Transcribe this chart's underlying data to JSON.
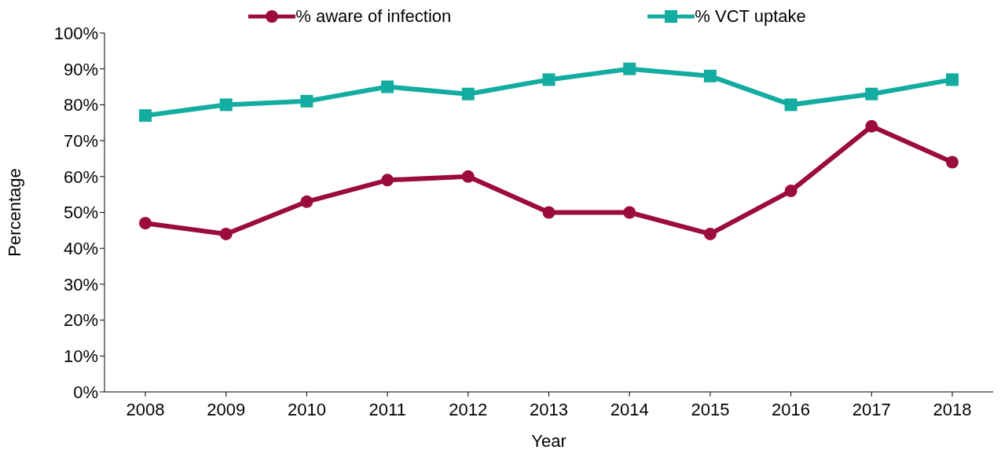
{
  "chart_data": {
    "type": "line",
    "xlabel": "Year",
    "ylabel": "Percentage",
    "categories": [
      "2008",
      "2009",
      "2010",
      "2011",
      "2012",
      "2013",
      "2014",
      "2015",
      "2016",
      "2017",
      "2018"
    ],
    "series": [
      {
        "name": "% aware of infection",
        "color": "#9b0b3e",
        "marker": "circle",
        "values": [
          47,
          44,
          53,
          59,
          60,
          50,
          50,
          44,
          56,
          74,
          64
        ]
      },
      {
        "name": "% VCT uptake",
        "color": "#13aca0",
        "marker": "square",
        "values": [
          77,
          80,
          81,
          85,
          83,
          87,
          90,
          88,
          80,
          83,
          87
        ]
      }
    ],
    "ylim": [
      0,
      100
    ],
    "yticks": [
      {
        "value": 0,
        "label": "0%"
      },
      {
        "value": 10,
        "label": "10%"
      },
      {
        "value": 20,
        "label": "20%"
      },
      {
        "value": 30,
        "label": "30%"
      },
      {
        "value": 40,
        "label": "40%"
      },
      {
        "value": 50,
        "label": "50%"
      },
      {
        "value": 60,
        "label": "60%"
      },
      {
        "value": 70,
        "label": "70%"
      },
      {
        "value": 80,
        "label": "80%"
      },
      {
        "value": 90,
        "label": "90%"
      },
      {
        "value": 100,
        "label": "100%"
      }
    ],
    "grid": false,
    "legend": "top",
    "line_style": "solid"
  }
}
